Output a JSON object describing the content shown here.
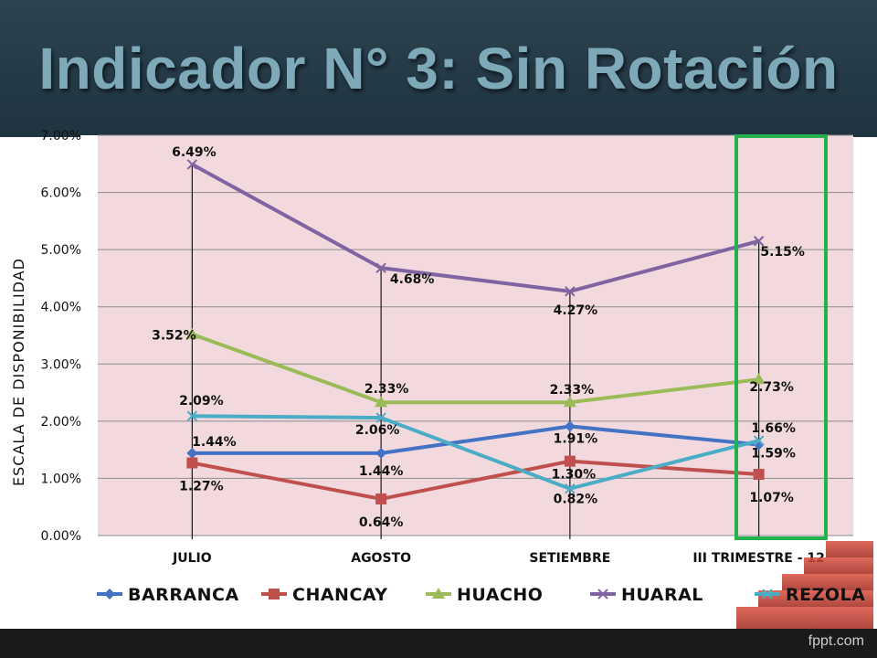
{
  "slide": {
    "title": "Indicador N° 3: Sin Rotación",
    "footer_brand": "fppt.com"
  },
  "chart_data": {
    "type": "line",
    "ylabel": "ESCALA DE DISPONIBILIDAD",
    "categories": [
      "JULIO",
      "AGOSTO",
      "SETIEMBRE",
      "III TRIMESTRE - 12"
    ],
    "ylim": [
      0,
      7
    ],
    "yticks": [
      "0.00%",
      "1.00%",
      "2.00%",
      "3.00%",
      "4.00%",
      "5.00%",
      "6.00%",
      "7.00%"
    ],
    "plot_background": "#f2d9dd",
    "highlight_color": "#22b14c",
    "legend_position": "bottom",
    "series": [
      {
        "name": "BARRANCA",
        "color": "#4472c4",
        "marker": "diamond",
        "values": [
          1.44,
          1.44,
          1.91,
          1.59
        ],
        "labels": [
          "1.44%",
          "1.44%",
          "1.91%",
          "1.59%"
        ]
      },
      {
        "name": "CHANCAY",
        "color": "#c0504d",
        "marker": "square",
        "values": [
          1.27,
          0.64,
          1.3,
          1.07
        ],
        "labels": [
          "1.27%",
          "0.64%",
          "1.30%",
          "1.07%"
        ]
      },
      {
        "name": "HUACHO",
        "color": "#9bbb59",
        "marker": "triangle",
        "values": [
          3.52,
          2.33,
          2.33,
          2.73
        ],
        "labels": [
          "3.52%",
          "2.33%",
          "2.33%",
          "2.73%"
        ]
      },
      {
        "name": "HUARAL",
        "color": "#8064a2",
        "marker": "x",
        "values": [
          6.49,
          4.68,
          4.27,
          5.15
        ],
        "labels": [
          "6.49%",
          "4.68%",
          "4.27%",
          "5.15%"
        ]
      },
      {
        "name": "REZOLA",
        "color": "#4bacc6",
        "marker": "x",
        "values": [
          2.09,
          2.06,
          0.82,
          1.66
        ],
        "labels": [
          "2.09%",
          "2.06%",
          "0.82%",
          "1.66%"
        ]
      }
    ]
  }
}
